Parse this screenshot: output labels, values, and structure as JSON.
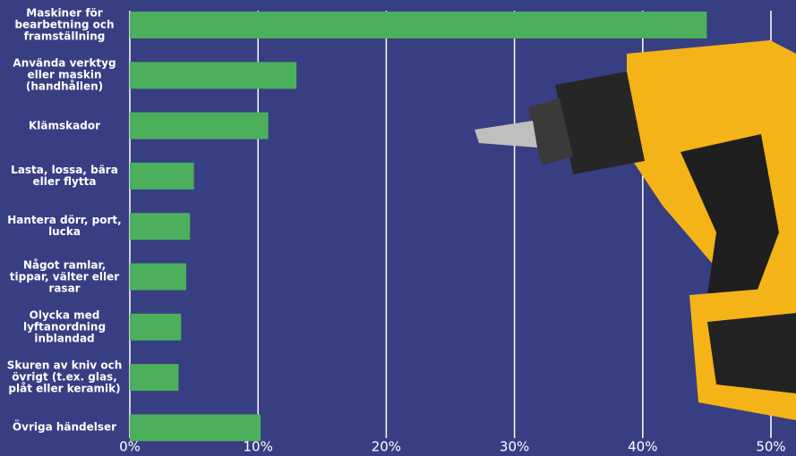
{
  "chart_data": {
    "type": "bar",
    "orientation": "horizontal",
    "categories": [
      "Maskiner för bearbetning och framställning",
      "Använda verktyg eller maskin (handhållen)",
      "Klämskador",
      "Lasta, lossa, bära eller flytta",
      "Hantera dörr, port, lucka",
      "Något ramlar, tippar, välter eller rasar",
      "Olycka med lyftanordning inblandad",
      "Skuren av kniv och övrigt (t.ex. glas, plåt eller keramik)",
      "Övriga händelser"
    ],
    "values": [
      45,
      13,
      10.8,
      5,
      4.7,
      4.4,
      4,
      3.8,
      10.2
    ],
    "color": "#4caf5c",
    "xlim": [
      0,
      50
    ],
    "xticks": [
      {
        "value": 0,
        "label": "0%"
      },
      {
        "value": 10,
        "label": "10%"
      },
      {
        "value": 20,
        "label": "20%"
      },
      {
        "value": 30,
        "label": "30%"
      },
      {
        "value": 40,
        "label": "40%"
      },
      {
        "value": 50,
        "label": "50%"
      }
    ],
    "grid": true
  }
}
